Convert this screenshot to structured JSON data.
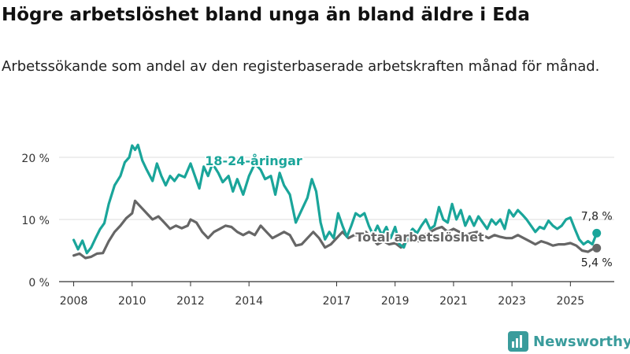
{
  "header": {
    "title": "Högre arbetslöshet bland unga än bland äldre i Eda",
    "subtitle": "Arbetssökande som andel av den registerbaserade arbetskraften månad för månad."
  },
  "brand": {
    "name": "Newsworthy"
  },
  "chart_data": {
    "type": "line",
    "title": "Högre arbetslöshet bland unga än bland äldre i Eda",
    "subtitle": "Arbetssökande som andel av den registerbaserade arbetskraften månad för månad.",
    "xlabel": "",
    "ylabel": "",
    "xlim": [
      2007.5,
      2026.5
    ],
    "ylim": [
      0,
      22
    ],
    "y_ticks": [
      0,
      10,
      20
    ],
    "y_tick_labels": [
      "0 %",
      "10 %",
      "20 %"
    ],
    "x_ticks": [
      2008,
      2010,
      2012,
      2014,
      2017,
      2019,
      2021,
      2023,
      2025
    ],
    "x_tick_labels": [
      "2008",
      "2010",
      "2012",
      "2014",
      "2017",
      "2019",
      "2021",
      "2023",
      "2025"
    ],
    "grid": true,
    "series": [
      {
        "name": "18-24-åringar",
        "label": "18-24-åringar",
        "color": "#1aa59a",
        "end_label": "7,8 %",
        "points": [
          [
            2008.0,
            6.7
          ],
          [
            2008.15,
            5.2
          ],
          [
            2008.3,
            6.6
          ],
          [
            2008.45,
            4.6
          ],
          [
            2008.6,
            5.5
          ],
          [
            2008.75,
            7.0
          ],
          [
            2008.9,
            8.4
          ],
          [
            2009.05,
            9.4
          ],
          [
            2009.2,
            12.5
          ],
          [
            2009.4,
            15.5
          ],
          [
            2009.6,
            17.0
          ],
          [
            2009.75,
            19.2
          ],
          [
            2009.9,
            20.0
          ],
          [
            2010.0,
            21.9
          ],
          [
            2010.1,
            21.2
          ],
          [
            2010.2,
            22.0
          ],
          [
            2010.35,
            19.5
          ],
          [
            2010.5,
            18.0
          ],
          [
            2010.7,
            16.2
          ],
          [
            2010.85,
            19.0
          ],
          [
            2011.0,
            17.0
          ],
          [
            2011.15,
            15.5
          ],
          [
            2011.3,
            17.0
          ],
          [
            2011.45,
            16.2
          ],
          [
            2011.6,
            17.2
          ],
          [
            2011.8,
            16.8
          ],
          [
            2012.0,
            19.0
          ],
          [
            2012.15,
            17.0
          ],
          [
            2012.3,
            15.0
          ],
          [
            2012.45,
            18.5
          ],
          [
            2012.6,
            17.0
          ],
          [
            2012.75,
            19.0
          ],
          [
            2012.95,
            17.5
          ],
          [
            2013.1,
            16.0
          ],
          [
            2013.3,
            17.0
          ],
          [
            2013.45,
            14.5
          ],
          [
            2013.6,
            16.5
          ],
          [
            2013.8,
            14.0
          ],
          [
            2014.0,
            17.0
          ],
          [
            2014.2,
            19.0
          ],
          [
            2014.4,
            18.0
          ],
          [
            2014.55,
            16.5
          ],
          [
            2014.75,
            17.0
          ],
          [
            2014.9,
            14.0
          ],
          [
            2015.05,
            17.5
          ],
          [
            2015.2,
            15.5
          ],
          [
            2015.4,
            14.0
          ],
          [
            2015.6,
            9.5
          ],
          [
            2015.8,
            11.5
          ],
          [
            2016.0,
            13.5
          ],
          [
            2016.15,
            16.5
          ],
          [
            2016.3,
            14.5
          ],
          [
            2016.45,
            9.5
          ],
          [
            2016.6,
            6.8
          ],
          [
            2016.75,
            8.0
          ],
          [
            2016.9,
            7.0
          ],
          [
            2017.05,
            11.0
          ],
          [
            2017.2,
            9.0
          ],
          [
            2017.35,
            7.2
          ],
          [
            2017.5,
            9.0
          ],
          [
            2017.65,
            11.0
          ],
          [
            2017.8,
            10.5
          ],
          [
            2017.95,
            11.0
          ],
          [
            2018.1,
            9.0
          ],
          [
            2018.25,
            7.5
          ],
          [
            2018.4,
            9.0
          ],
          [
            2018.55,
            7.5
          ],
          [
            2018.7,
            8.8
          ],
          [
            2018.85,
            7.0
          ],
          [
            2019.0,
            8.8
          ],
          [
            2019.15,
            6.0
          ],
          [
            2019.3,
            5.5
          ],
          [
            2019.45,
            7.5
          ],
          [
            2019.6,
            8.5
          ],
          [
            2019.75,
            7.8
          ],
          [
            2019.9,
            9.0
          ],
          [
            2020.05,
            10.0
          ],
          [
            2020.2,
            8.5
          ],
          [
            2020.35,
            9.0
          ],
          [
            2020.5,
            12.0
          ],
          [
            2020.65,
            10.0
          ],
          [
            2020.8,
            9.5
          ],
          [
            2020.95,
            12.5
          ],
          [
            2021.1,
            10.0
          ],
          [
            2021.25,
            11.5
          ],
          [
            2021.4,
            9.0
          ],
          [
            2021.55,
            10.5
          ],
          [
            2021.7,
            9.0
          ],
          [
            2021.85,
            10.5
          ],
          [
            2022.0,
            9.5
          ],
          [
            2022.15,
            8.5
          ],
          [
            2022.3,
            10.0
          ],
          [
            2022.45,
            9.2
          ],
          [
            2022.6,
            10.0
          ],
          [
            2022.75,
            8.5
          ],
          [
            2022.9,
            11.5
          ],
          [
            2023.05,
            10.5
          ],
          [
            2023.2,
            11.5
          ],
          [
            2023.35,
            10.8
          ],
          [
            2023.5,
            10.0
          ],
          [
            2023.65,
            9.0
          ],
          [
            2023.8,
            8.0
          ],
          [
            2023.95,
            8.8
          ],
          [
            2024.1,
            8.5
          ],
          [
            2024.25,
            9.8
          ],
          [
            2024.4,
            9.0
          ],
          [
            2024.55,
            8.5
          ],
          [
            2024.7,
            9.0
          ],
          [
            2024.85,
            10.0
          ],
          [
            2025.0,
            10.3
          ],
          [
            2025.15,
            8.5
          ],
          [
            2025.3,
            6.8
          ],
          [
            2025.45,
            6.0
          ],
          [
            2025.6,
            6.5
          ],
          [
            2025.75,
            6.0
          ],
          [
            2025.9,
            7.8
          ]
        ]
      },
      {
        "name": "Total arbetslöshet",
        "label": "Total arbetslöshet",
        "color": "#666666",
        "end_label": "5,4 %",
        "points": [
          [
            2008.0,
            4.2
          ],
          [
            2008.2,
            4.5
          ],
          [
            2008.4,
            3.8
          ],
          [
            2008.6,
            4.0
          ],
          [
            2008.8,
            4.5
          ],
          [
            2009.0,
            4.6
          ],
          [
            2009.2,
            6.5
          ],
          [
            2009.4,
            8.0
          ],
          [
            2009.6,
            9.0
          ],
          [
            2009.8,
            10.2
          ],
          [
            2010.0,
            11.0
          ],
          [
            2010.1,
            13.0
          ],
          [
            2010.3,
            12.0
          ],
          [
            2010.5,
            11.0
          ],
          [
            2010.7,
            10.0
          ],
          [
            2010.9,
            10.5
          ],
          [
            2011.1,
            9.5
          ],
          [
            2011.3,
            8.5
          ],
          [
            2011.5,
            9.0
          ],
          [
            2011.7,
            8.6
          ],
          [
            2011.9,
            9.0
          ],
          [
            2012.0,
            10.0
          ],
          [
            2012.2,
            9.5
          ],
          [
            2012.4,
            8.0
          ],
          [
            2012.6,
            7.0
          ],
          [
            2012.8,
            8.0
          ],
          [
            2013.0,
            8.5
          ],
          [
            2013.2,
            9.0
          ],
          [
            2013.4,
            8.8
          ],
          [
            2013.6,
            8.0
          ],
          [
            2013.8,
            7.5
          ],
          [
            2014.0,
            8.0
          ],
          [
            2014.2,
            7.5
          ],
          [
            2014.4,
            9.0
          ],
          [
            2014.6,
            8.0
          ],
          [
            2014.8,
            7.0
          ],
          [
            2015.0,
            7.5
          ],
          [
            2015.2,
            8.0
          ],
          [
            2015.4,
            7.5
          ],
          [
            2015.6,
            5.8
          ],
          [
            2015.8,
            6.0
          ],
          [
            2016.0,
            7.0
          ],
          [
            2016.2,
            8.0
          ],
          [
            2016.4,
            7.0
          ],
          [
            2016.6,
            5.5
          ],
          [
            2016.8,
            6.0
          ],
          [
            2017.0,
            7.0
          ],
          [
            2017.2,
            8.0
          ],
          [
            2017.4,
            7.0
          ],
          [
            2017.6,
            7.5
          ],
          [
            2017.8,
            7.5
          ],
          [
            2018.0,
            8.0
          ],
          [
            2018.2,
            7.0
          ],
          [
            2018.4,
            6.0
          ],
          [
            2018.6,
            6.5
          ],
          [
            2018.8,
            6.0
          ],
          [
            2019.0,
            6.2
          ],
          [
            2019.2,
            5.5
          ],
          [
            2019.4,
            6.5
          ],
          [
            2019.6,
            7.0
          ],
          [
            2019.8,
            6.5
          ],
          [
            2020.0,
            7.5
          ],
          [
            2020.2,
            8.0
          ],
          [
            2020.4,
            8.5
          ],
          [
            2020.6,
            8.8
          ],
          [
            2020.8,
            8.0
          ],
          [
            2021.0,
            8.5
          ],
          [
            2021.2,
            8.0
          ],
          [
            2021.4,
            7.5
          ],
          [
            2021.6,
            7.8
          ],
          [
            2021.8,
            8.0
          ],
          [
            2022.0,
            7.5
          ],
          [
            2022.2,
            7.0
          ],
          [
            2022.4,
            7.5
          ],
          [
            2022.6,
            7.2
          ],
          [
            2022.8,
            7.0
          ],
          [
            2023.0,
            7.0
          ],
          [
            2023.2,
            7.5
          ],
          [
            2023.4,
            7.0
          ],
          [
            2023.6,
            6.5
          ],
          [
            2023.8,
            6.0
          ],
          [
            2024.0,
            6.5
          ],
          [
            2024.2,
            6.2
          ],
          [
            2024.4,
            5.8
          ],
          [
            2024.6,
            6.0
          ],
          [
            2024.8,
            6.0
          ],
          [
            2025.0,
            6.2
          ],
          [
            2025.2,
            5.8
          ],
          [
            2025.4,
            5.0
          ],
          [
            2025.6,
            4.8
          ],
          [
            2025.75,
            5.2
          ],
          [
            2025.9,
            5.4
          ]
        ]
      }
    ]
  }
}
